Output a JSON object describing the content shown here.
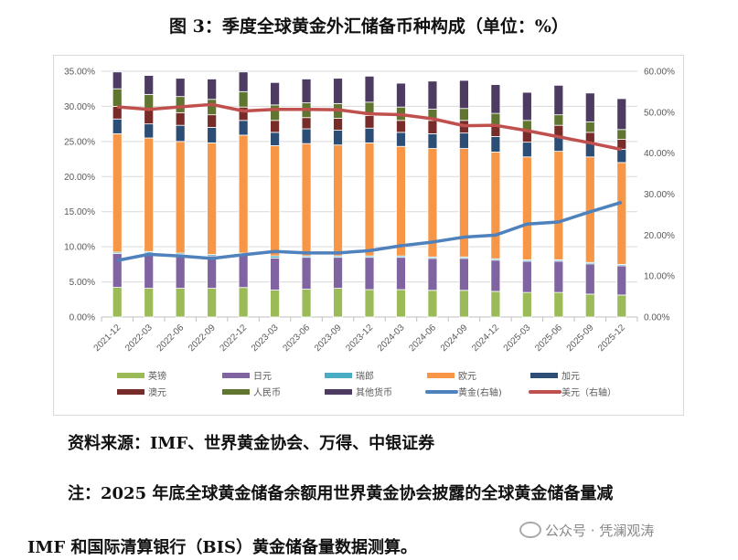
{
  "title": "图 3：季度全球黄金外汇储备币种构成（单位：%）",
  "source": "资料来源：IMF、世界黄金协会、万得、中银证券",
  "note_line1": "注：2025 年底全球黄金储备余额用世界黄金协会披露的全球黄金储备量减",
  "note_line2": "IMF 和国际清算银行（BIS）黄金储备量数据测算。",
  "watermark": "公众号 · 凭澜观涛",
  "chart_data": {
    "type": "bar",
    "stacked": true,
    "categories": [
      "2021-12",
      "2022-03",
      "2022-06",
      "2022-09",
      "2022-12",
      "2023-03",
      "2023-06",
      "2023-09",
      "2023-12",
      "2024-03",
      "2024-06",
      "2024-09",
      "2024-12",
      "2025-03",
      "2025-06",
      "2025-09",
      "2025-12"
    ],
    "left_axis": {
      "ylim": [
        0,
        35
      ],
      "ticks": [
        "0.00%",
        "5.00%",
        "10.00%",
        "15.00%",
        "20.00%",
        "25.00%",
        "30.00%",
        "35.00%"
      ]
    },
    "right_axis": {
      "ylim": [
        0,
        60
      ],
      "ticks": [
        "0.00%",
        "10.00%",
        "20.00%",
        "30.00%",
        "40.00%",
        "50.00%",
        "60.00%"
      ]
    },
    "grid": true,
    "legend_position": "bottom",
    "series": [
      {
        "name": "英镑",
        "kind": "bar",
        "color": "#9BBB59",
        "values": [
          4.22,
          4.09,
          4.09,
          4.09,
          4.2,
          3.83,
          3.96,
          4.09,
          3.9,
          3.9,
          3.8,
          3.8,
          3.65,
          3.5,
          3.5,
          3.26,
          3.13
        ]
      },
      {
        "name": "日元",
        "kind": "bar",
        "color": "#8064A2",
        "values": [
          4.82,
          5.04,
          4.81,
          4.61,
          4.7,
          4.57,
          4.54,
          4.41,
          4.6,
          4.6,
          4.55,
          4.55,
          4.45,
          4.45,
          4.45,
          4.31,
          4.17
        ]
      },
      {
        "name": "瑞郎",
        "kind": "bar",
        "color": "#4BACC6",
        "values": [
          0.2,
          0.2,
          0.2,
          0.2,
          0.2,
          0.3,
          0.2,
          0.2,
          0.2,
          0.2,
          0.2,
          0.2,
          0.2,
          0.2,
          0.2,
          0.2,
          0.2
        ]
      },
      {
        "name": "欧元",
        "kind": "bar",
        "color": "#F79646",
        "values": [
          16.86,
          16.17,
          15.9,
          15.9,
          16.8,
          15.7,
          16.0,
          15.8,
          16.1,
          15.6,
          15.45,
          15.45,
          15.2,
          14.65,
          15.45,
          15.03,
          14.5
        ]
      },
      {
        "name": "加元",
        "kind": "bar",
        "color": "#2C4D75",
        "values": [
          2.1,
          2.0,
          2.3,
          2.2,
          2.1,
          1.9,
          2.1,
          2.1,
          2.1,
          2.0,
          2.1,
          2.2,
          2.2,
          2.1,
          2.1,
          2.0,
          1.9
        ]
      },
      {
        "name": "澳元",
        "kind": "bar",
        "color": "#772C2A",
        "values": [
          1.8,
          2.1,
          1.8,
          1.8,
          1.9,
          1.7,
          1.6,
          1.7,
          1.8,
          1.7,
          1.9,
          1.8,
          1.7,
          1.6,
          1.6,
          1.5,
          1.4
        ]
      },
      {
        "name": "人民币",
        "kind": "bar",
        "color": "#5F7530",
        "values": [
          2.5,
          2.1,
          2.3,
          2.2,
          2.2,
          2.2,
          2.1,
          2.1,
          1.9,
          1.9,
          1.6,
          1.7,
          1.6,
          1.5,
          1.5,
          1.5,
          1.4
        ]
      },
      {
        "name": "其他货币",
        "kind": "bar",
        "color": "#4D3B62",
        "values": [
          2.4,
          2.7,
          2.6,
          2.9,
          2.8,
          3.2,
          3.4,
          3.6,
          3.7,
          3.4,
          4.0,
          4.0,
          4.1,
          4.0,
          4.2,
          4.1,
          4.4
        ]
      },
      {
        "name": "黄金(右轴)",
        "kind": "line",
        "color": "#4F81BD",
        "values": [
          13.8,
          15.3,
          14.9,
          14.3,
          15.2,
          16.0,
          15.65,
          15.65,
          16.2,
          17.4,
          18.3,
          19.5,
          20.0,
          22.7,
          23.2,
          25.7,
          28.0
        ]
      },
      {
        "name": "美元（右轴）",
        "kind": "line",
        "color": "#C0504D",
        "values": [
          51.3,
          50.7,
          51.3,
          51.9,
          50.3,
          50.7,
          50.7,
          50.6,
          49.6,
          49.4,
          48.4,
          46.7,
          46.8,
          45.5,
          44.0,
          42.5,
          40.9
        ]
      }
    ]
  }
}
